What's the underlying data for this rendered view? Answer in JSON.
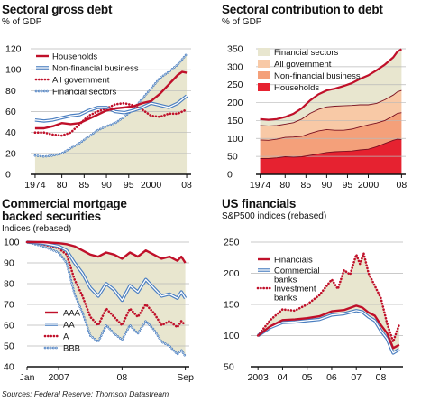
{
  "source": "Sources: Federal Reserve; Thomson Datastream",
  "colors": {
    "area": "#e8e6cf",
    "red": "#c0102a",
    "blue": "#4a7ec0",
    "lightblue": "#a8c6e6",
    "grid": "#b9b9b9"
  },
  "chart_data": [
    {
      "type": "line",
      "title": "Sectoral gross debt",
      "ylabel": "% of GDP",
      "ylim": [
        0,
        120
      ],
      "yticks": [
        0,
        20,
        40,
        60,
        80,
        100,
        120
      ],
      "xlim": [
        1973,
        2009
      ],
      "xticks": [
        1974,
        80,
        85,
        90,
        95,
        2000,
        "08"
      ],
      "xtick_pos": [
        1974,
        1980,
        1985,
        1990,
        1995,
        2000,
        2008
      ],
      "legend": "top-left",
      "series": [
        {
          "name": "Households",
          "x": [
            1974,
            1976,
            1978,
            1980,
            1982,
            1984,
            1986,
            1988,
            1990,
            1992,
            1994,
            1996,
            1998,
            2000,
            2002,
            2004,
            2006,
            2007,
            2008
          ],
          "y": [
            44,
            44,
            46,
            49,
            48,
            49,
            53,
            57,
            61,
            63,
            64,
            65,
            68,
            70,
            77,
            86,
            95,
            98,
            97
          ]
        },
        {
          "name": "Non-financial business",
          "x": [
            1974,
            1976,
            1978,
            1980,
            1982,
            1984,
            1986,
            1988,
            1990,
            1992,
            1994,
            1996,
            1998,
            2000,
            2002,
            2004,
            2006,
            2008
          ],
          "y": [
            52,
            51,
            52,
            54,
            56,
            57,
            61,
            64,
            64,
            60,
            59,
            61,
            64,
            68,
            66,
            64,
            68,
            75
          ]
        },
        {
          "name": "All government",
          "x": [
            1974,
            1976,
            1978,
            1980,
            1982,
            1984,
            1986,
            1988,
            1990,
            1992,
            1994,
            1996,
            1998,
            2000,
            2002,
            2004,
            2006,
            2008
          ],
          "y": [
            40,
            40,
            38,
            37,
            40,
            48,
            56,
            60,
            63,
            67,
            68,
            66,
            62,
            56,
            55,
            58,
            58,
            62
          ]
        },
        {
          "name": "Financial sectors",
          "x": [
            1974,
            1976,
            1978,
            1980,
            1982,
            1984,
            1986,
            1988,
            1990,
            1992,
            1994,
            1996,
            1998,
            2000,
            2002,
            2004,
            2006,
            2008
          ],
          "y": [
            18,
            17,
            18,
            20,
            25,
            30,
            36,
            42,
            46,
            49,
            55,
            62,
            72,
            82,
            92,
            98,
            105,
            115
          ]
        }
      ]
    },
    {
      "type": "area",
      "title": "Sectoral contribution to debt",
      "ylabel": "% of GDP",
      "ylim": [
        0,
        350
      ],
      "yticks": [
        0,
        50,
        100,
        150,
        200,
        250,
        300,
        350
      ],
      "xlim": [
        1973,
        2009
      ],
      "xticks": [
        1974,
        80,
        85,
        90,
        95,
        2000,
        "08"
      ],
      "xtick_pos": [
        1974,
        1980,
        1985,
        1990,
        1995,
        2000,
        2008
      ],
      "legend": "top-left",
      "x": [
        1974,
        1976,
        1978,
        1980,
        1982,
        1984,
        1986,
        1988,
        1990,
        1992,
        1994,
        1996,
        1998,
        2000,
        2002,
        2004,
        2006,
        2007,
        2008
      ],
      "series": [
        {
          "name": "Households",
          "y": [
            44,
            44,
            46,
            49,
            48,
            49,
            53,
            57,
            61,
            63,
            64,
            65,
            68,
            70,
            77,
            86,
            95,
            98,
            97
          ]
        },
        {
          "name": "Non-financial business",
          "y": [
            52,
            51,
            52,
            54,
            56,
            57,
            61,
            64,
            64,
            60,
            59,
            61,
            64,
            68,
            66,
            64,
            68,
            72,
            75
          ]
        },
        {
          "name": "All government",
          "y": [
            40,
            40,
            38,
            37,
            40,
            48,
            56,
            60,
            63,
            67,
            68,
            66,
            62,
            56,
            55,
            58,
            58,
            60,
            62
          ]
        },
        {
          "name": "Financial sectors",
          "y": [
            18,
            17,
            18,
            20,
            25,
            30,
            36,
            42,
            46,
            49,
            55,
            62,
            72,
            82,
            92,
            98,
            105,
            112,
            115
          ]
        }
      ]
    },
    {
      "type": "line",
      "title": "Commercial mortgage backed securities",
      "ylabel": "Indices (rebased)",
      "ylim": [
        40,
        100
      ],
      "yticks": [
        40,
        50,
        60,
        70,
        80,
        90,
        100
      ],
      "xlim": [
        0,
        20.5
      ],
      "xticks": [
        "Jan",
        "2007",
        "08",
        "Sep"
      ],
      "xtick_pos": [
        0,
        4,
        12,
        20
      ],
      "legend": "bottom-left",
      "series": [
        {
          "name": "AAA",
          "x": [
            0,
            2,
            4,
            5,
            6,
            7,
            8,
            9,
            10,
            11,
            12,
            13,
            14,
            15,
            16,
            17,
            18,
            19,
            19.5,
            20
          ],
          "y": [
            100,
            100,
            99.5,
            99,
            98,
            96,
            94,
            93,
            95,
            94,
            92,
            95,
            93,
            96,
            94,
            92,
            93,
            91,
            93,
            90
          ]
        },
        {
          "name": "AA",
          "x": [
            0,
            2,
            4,
            5,
            6,
            7,
            8,
            9,
            10,
            11,
            12,
            13,
            14,
            15,
            16,
            17,
            18,
            19,
            19.5,
            20
          ],
          "y": [
            100,
            99.5,
            98,
            96,
            90,
            85,
            78,
            74,
            80,
            77,
            72,
            79,
            76,
            82,
            78,
            74,
            75,
            73,
            76,
            73
          ]
        },
        {
          "name": "A",
          "x": [
            0,
            2,
            4,
            5,
            6,
            7,
            8,
            9,
            10,
            11,
            12,
            13,
            14,
            15,
            16,
            17,
            18,
            19,
            19.5,
            20
          ],
          "y": [
            100,
            99,
            97,
            94,
            82,
            74,
            64,
            60,
            68,
            64,
            60,
            68,
            64,
            70,
            66,
            60,
            62,
            59,
            62,
            60
          ]
        },
        {
          "name": "BBB",
          "x": [
            0,
            2,
            4,
            5,
            6,
            7,
            8,
            9,
            10,
            11,
            12,
            13,
            14,
            15,
            16,
            17,
            18,
            19,
            19.5,
            20
          ],
          "y": [
            100,
            98,
            95,
            90,
            75,
            66,
            55,
            52,
            60,
            56,
            53,
            60,
            56,
            62,
            58,
            52,
            50,
            46,
            48,
            45
          ]
        }
      ]
    },
    {
      "type": "line",
      "title": "US financials",
      "ylabel": "S&P500 indices (rebased)",
      "ylim": [
        50,
        250
      ],
      "yticks": [
        50,
        100,
        150,
        200,
        250
      ],
      "xlim": [
        2002.7,
        2008.9
      ],
      "xticks": [
        2003,
        "04",
        "05",
        "06",
        "07",
        "08"
      ],
      "xtick_pos": [
        2003,
        2004,
        2005,
        2006,
        2007,
        2008
      ],
      "legend": "top-left",
      "series": [
        {
          "name": "Financials",
          "x": [
            2003,
            2003.5,
            2004,
            2004.5,
            2005,
            2005.5,
            2006,
            2006.5,
            2007,
            2007.25,
            2007.5,
            2007.75,
            2008,
            2008.25,
            2008.5,
            2008.75
          ],
          "y": [
            100,
            115,
            125,
            126,
            128,
            131,
            139,
            141,
            148,
            145,
            137,
            132,
            117,
            104,
            80,
            85
          ]
        },
        {
          "name": "Commercial banks",
          "x": [
            2003,
            2003.5,
            2004,
            2004.5,
            2005,
            2005.5,
            2006,
            2006.5,
            2007,
            2007.25,
            2007.5,
            2007.75,
            2008,
            2008.25,
            2008.5,
            2008.75
          ],
          "y": [
            100,
            113,
            121,
            122,
            124,
            126,
            133,
            135,
            140,
            138,
            130,
            124,
            108,
            95,
            72,
            78
          ]
        },
        {
          "name": "Investment banks",
          "x": [
            2003,
            2003.5,
            2004,
            2004.5,
            2005,
            2005.5,
            2006,
            2006.25,
            2006.5,
            2006.75,
            2007,
            2007.15,
            2007.3,
            2007.5,
            2007.75,
            2008,
            2008.25,
            2008.5,
            2008.75
          ],
          "y": [
            100,
            125,
            142,
            140,
            150,
            165,
            190,
            175,
            205,
            198,
            230,
            215,
            232,
            200,
            180,
            160,
            120,
            90,
            118
          ]
        }
      ]
    }
  ]
}
